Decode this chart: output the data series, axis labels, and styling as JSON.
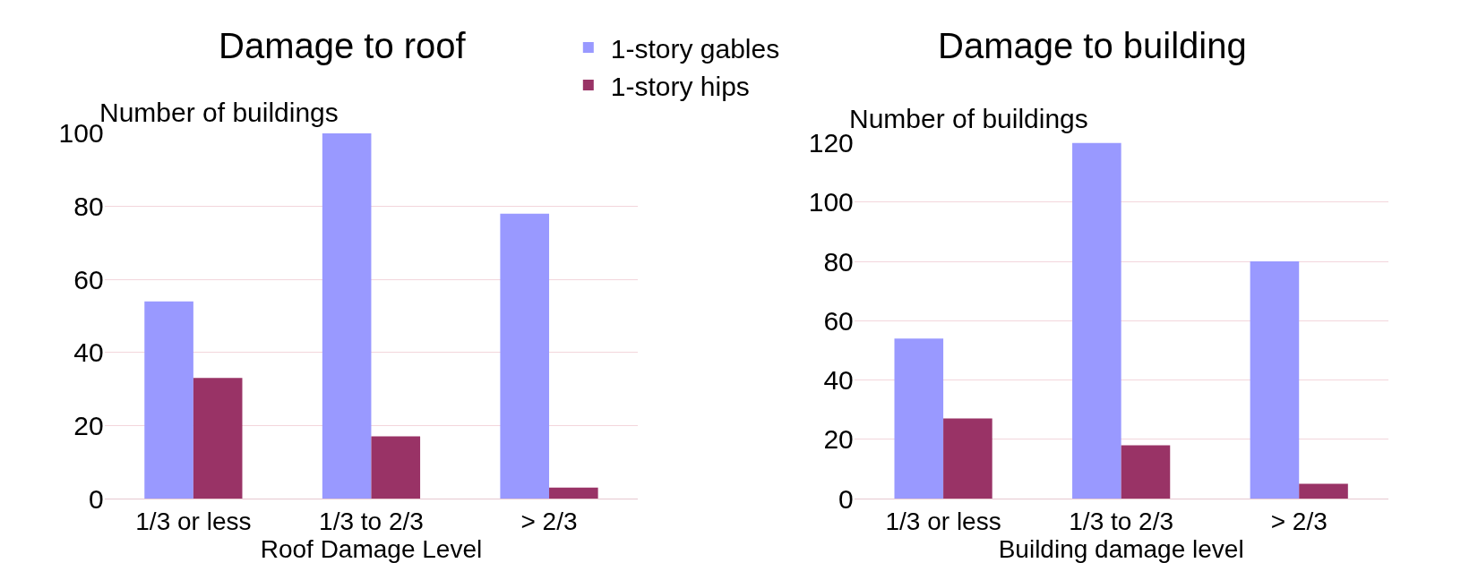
{
  "chart_data": [
    {
      "type": "bar",
      "title": "Damage to roof",
      "ylabel": "Number of buildings",
      "xlabel": "Roof Damage Level",
      "categories": [
        "1/3 or less",
        "1/3 to 2/3",
        "> 2/3"
      ],
      "series": [
        {
          "name": "1-story gables",
          "color": "#9999ff",
          "values": [
            54,
            100,
            78
          ]
        },
        {
          "name": "1-story hips",
          "color": "#993366",
          "values": [
            33,
            17,
            3
          ]
        }
      ],
      "ylim": [
        0,
        100
      ],
      "yticks": [
        0,
        20,
        40,
        60,
        80,
        100
      ],
      "grid": "y",
      "legend": "top right"
    },
    {
      "type": "bar",
      "title": "Damage to building",
      "ylabel": "Number of buildings",
      "xlabel": "Building damage level",
      "categories": [
        "1/3 or less",
        "1/3 to 2/3",
        "> 2/3"
      ],
      "series": [
        {
          "color": "#9999ff",
          "values": [
            54,
            120,
            80
          ]
        },
        {
          "color": "#993366",
          "values": [
            27,
            18,
            5
          ]
        }
      ],
      "ylim": [
        0,
        120
      ],
      "yticks": [
        0,
        20,
        40,
        60,
        80,
        100,
        120
      ],
      "grid": "y",
      "legend": false
    }
  ]
}
